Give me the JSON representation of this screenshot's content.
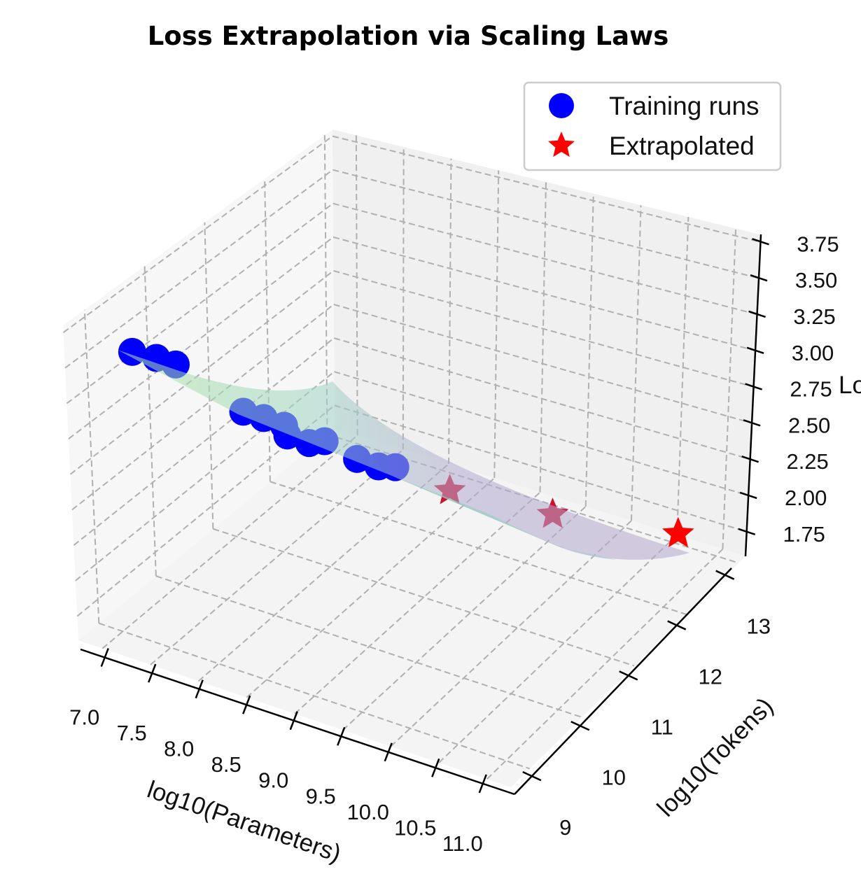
{
  "chart_data": {
    "type": "scatter3d",
    "title": "Loss Extrapolation via Scaling Laws",
    "xlabel": "log10(Parameters)",
    "ylabel": "log10(Tokens)",
    "zlabel": "Loss",
    "xlim": [
      6.75,
      11.25
    ],
    "ylim": [
      8.64,
      13.13
    ],
    "zlim": [
      1.58,
      3.8
    ],
    "xticks": [
      "7.0",
      "7.5",
      "8.0",
      "8.5",
      "9.0",
      "9.5",
      "10.0",
      "10.5",
      "11.0"
    ],
    "yticks": [
      "9",
      "10",
      "11",
      "12",
      "13"
    ],
    "zticks": [
      "1.75",
      "2.00",
      "2.25",
      "2.50",
      "2.75",
      "3.00",
      "3.25",
      "3.50",
      "3.75"
    ],
    "grid": true,
    "legend_position": "top-right",
    "surface": {
      "label": "",
      "colormap": "viridis",
      "alpha": 0.3
    },
    "series": [
      {
        "name": "Training runs",
        "marker": "circle",
        "color": "#0000ff",
        "points": [
          [
            7.4,
            8.7,
            3.72
          ],
          [
            7.55,
            8.85,
            3.66
          ],
          [
            7.67,
            8.97,
            3.6
          ],
          [
            8.09,
            9.39,
            3.22
          ],
          [
            8.22,
            9.52,
            3.16
          ],
          [
            8.35,
            9.65,
            3.09
          ],
          [
            8.37,
            9.67,
            3.02
          ],
          [
            8.51,
            9.81,
            2.95
          ],
          [
            8.61,
            9.91,
            2.95
          ],
          [
            8.82,
            10.12,
            2.8
          ],
          [
            8.96,
            10.26,
            2.73
          ],
          [
            9.07,
            10.37,
            2.71
          ]
        ]
      },
      {
        "name": "Extrapolated",
        "marker": "star",
        "color": "#ff0000",
        "points": [
          [
            9.43,
            10.73,
            2.5
          ],
          [
            10.12,
            11.42,
            2.24
          ],
          [
            10.98,
            12.28,
            1.98
          ]
        ]
      }
    ]
  }
}
